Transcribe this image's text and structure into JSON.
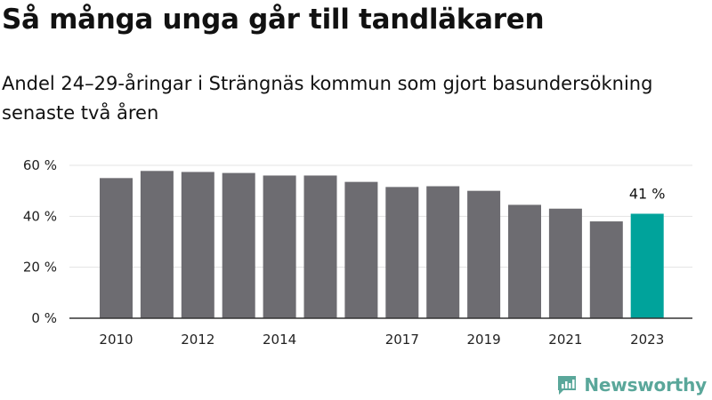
{
  "header": {
    "title": "Så många unga går till tandläkaren",
    "subtitle": "Andel 24–29-åringar i Strängnäs kommun som gjort basundersökning senaste två åren"
  },
  "brand": {
    "name": "Newsworthy",
    "icon": "newsworthy-logo-icon",
    "color": "#5aa79a"
  },
  "colors": {
    "bar": "#6d6c71",
    "highlight": "#00a39b",
    "grid": "#e3e3e3",
    "axis": "#333333"
  },
  "chart_data": {
    "type": "bar",
    "title": "Så många unga går till tandläkaren",
    "subtitle": "Andel 24–29-åringar i Strängnäs kommun som gjort basundersökning senaste två åren",
    "xlabel": "",
    "ylabel": "",
    "categories": [
      "2010",
      "2011",
      "2012",
      "2013",
      "2014",
      "2015",
      "2016",
      "2017",
      "2018",
      "2019",
      "2020",
      "2021",
      "2022",
      "2023"
    ],
    "values": [
      55,
      57.8,
      57.4,
      57,
      56,
      56,
      53.5,
      51.5,
      51.8,
      50,
      44.5,
      43,
      38,
      41
    ],
    "x_tick_labels": [
      "2010",
      "2012",
      "2014",
      "2017",
      "2019",
      "2021",
      "2023"
    ],
    "y_ticks": [
      0,
      20,
      40,
      60
    ],
    "y_tick_labels": [
      "0 %",
      "20 %",
      "40 %",
      "60 %"
    ],
    "ylim": [
      0,
      60
    ],
    "grid": true,
    "highlight": {
      "category": "2023",
      "label": "41 %"
    }
  }
}
